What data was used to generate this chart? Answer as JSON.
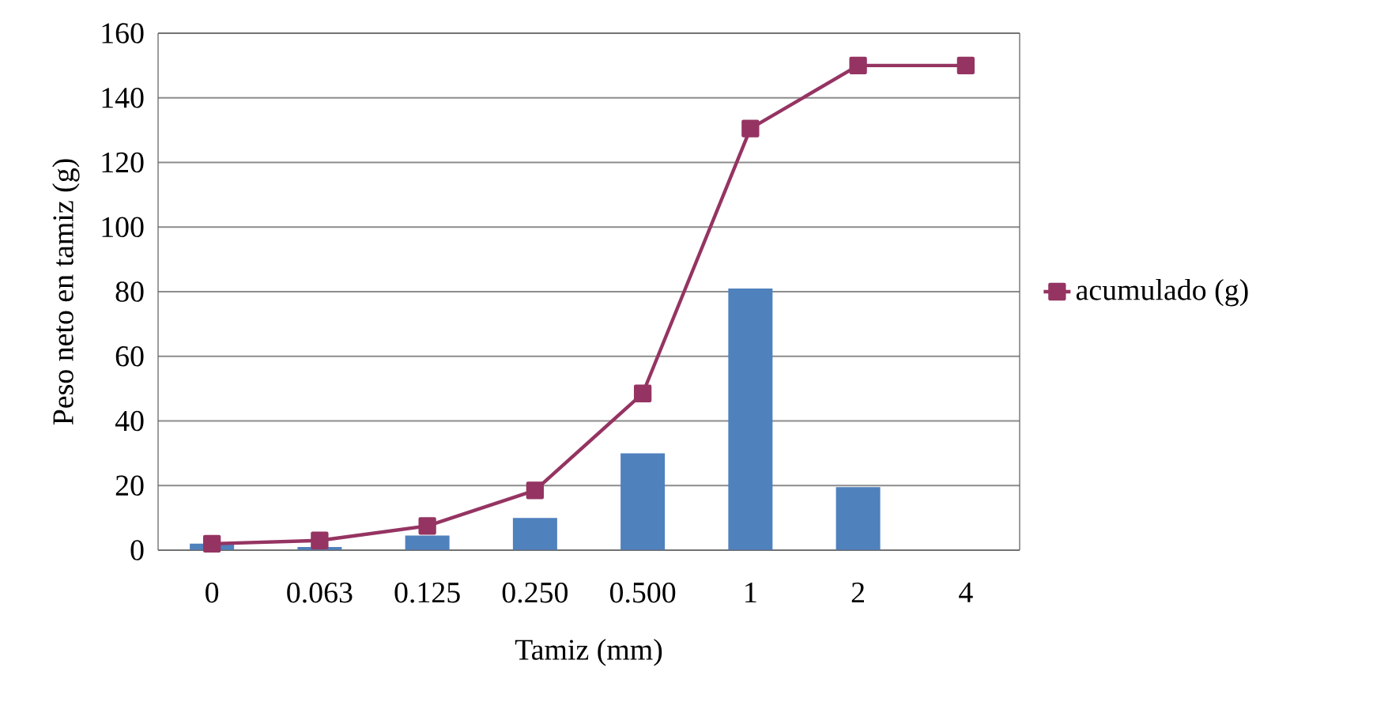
{
  "chart_data": {
    "type": "bar",
    "xlabel": "Tamiz (mm)",
    "ylabel": "Peso neto en tamiz (g)",
    "categories": [
      "0",
      "0.063",
      "0.125",
      "0.250",
      "0.500",
      "1",
      "2",
      "4"
    ],
    "series": [
      {
        "color": "#4f81bd",
        "values": [
          2,
          1,
          4.5,
          10,
          30,
          81,
          19.5,
          0
        ]
      },
      {
        "type": "line",
        "name": "acumulado (g)",
        "color": "#953462",
        "marker": "square",
        "values": [
          2,
          3,
          7.5,
          18.5,
          48.5,
          130.5,
          150,
          150
        ]
      }
    ],
    "ylim": [
      0,
      160
    ],
    "yticks": [
      0,
      20,
      40,
      60,
      80,
      100,
      120,
      140,
      160
    ],
    "grid": "y",
    "legend": "right"
  }
}
